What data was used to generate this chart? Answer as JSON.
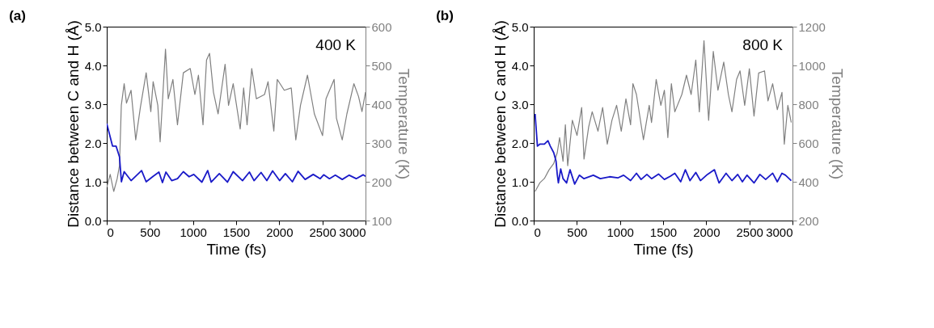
{
  "chart_data": [
    {
      "type": "line",
      "title": "(a)",
      "annotations": [
        "400 K"
      ],
      "xlabel": "Time (fs)",
      "ylabel": "Distance between C and H (Å)",
      "y2label": "Temperature (K)",
      "xlim": [
        0,
        3000
      ],
      "xticks": [
        0,
        500,
        1000,
        1500,
        2000,
        2500,
        3000
      ],
      "ylim": [
        0,
        5
      ],
      "yticks": [
        {
          "value": 0,
          "label": "0.0"
        },
        {
          "value": 1,
          "label": "1.0"
        },
        {
          "value": 2,
          "label": "2.0"
        },
        {
          "value": 3,
          "label": "3.0"
        },
        {
          "value": 4,
          "label": "4.0"
        },
        {
          "value": 5,
          "label": "5.0"
        }
      ],
      "y2lim": [
        100,
        600
      ],
      "y2ticks": [
        100,
        200,
        300,
        400,
        500,
        600
      ],
      "grid": false,
      "series": [
        {
          "color": "#808080",
          "axis": "y2",
          "x": [
            0,
            40,
            81,
            121,
            148,
            169,
            202,
            229,
            282,
            336,
            390,
            457,
            511,
            538,
            592,
            619,
            681,
            713,
            767,
            820,
            888,
            968,
            1022,
            1063,
            1116,
            1157,
            1192,
            1237,
            1291,
            1372,
            1412,
            1466,
            1547,
            1587,
            1627,
            1681,
            1735,
            1829,
            1870,
            1937,
            1977,
            2058,
            2139,
            2192,
            2246,
            2327,
            2407,
            2502,
            2542,
            2636,
            2663,
            2730,
            2784,
            2865,
            2919,
            2959,
            3000
          ],
          "values": [
            186,
            219,
            175,
            208,
            242,
            397,
            453,
            403,
            436,
            308,
            392,
            481,
            381,
            458,
            397,
            303,
            542,
            414,
            464,
            347,
            481,
            492,
            425,
            475,
            347,
            514,
            531,
            431,
            375,
            503,
            397,
            453,
            336,
            442,
            347,
            492,
            414,
            425,
            458,
            331,
            464,
            436,
            442,
            308,
            397,
            475,
            375,
            319,
            414,
            464,
            364,
            308,
            375,
            453,
            420,
            381,
            431
          ]
        },
        {
          "color": "#1a1ac8",
          "x": [
            0,
            67,
            108,
            148,
            170,
            202,
            282,
            404,
            457,
            538,
            605,
            646,
            686,
            753,
            820,
            888,
            955,
            1009,
            1103,
            1170,
            1211,
            1305,
            1399,
            1466,
            1574,
            1654,
            1708,
            1789,
            1856,
            1923,
            2004,
            2071,
            2152,
            2219,
            2300,
            2394,
            2475,
            2515,
            2582,
            2650,
            2730,
            2811,
            2892,
            2972,
            3000
          ],
          "values": [
            2.5,
            1.92,
            1.92,
            1.64,
            1.0,
            1.26,
            1.03,
            1.29,
            1.0,
            1.14,
            1.25,
            0.98,
            1.25,
            1.03,
            1.08,
            1.26,
            1.13,
            1.19,
            0.99,
            1.29,
            0.99,
            1.21,
            0.99,
            1.26,
            1.03,
            1.25,
            1.03,
            1.24,
            1.03,
            1.28,
            1.03,
            1.21,
            1.0,
            1.27,
            1.06,
            1.19,
            1.08,
            1.18,
            1.08,
            1.17,
            1.06,
            1.17,
            1.08,
            1.18,
            1.14
          ]
        }
      ]
    },
    {
      "type": "line",
      "title": "(b)",
      "annotations": [
        "800 K"
      ],
      "xlabel": "Time (fs)",
      "ylabel": "Distance between C and H (Å)",
      "y2label": "Temperature (K)",
      "xlim": [
        0,
        3000
      ],
      "xticks": [
        0,
        500,
        1000,
        1500,
        2000,
        2500,
        3000
      ],
      "ylim": [
        0,
        5
      ],
      "yticks": [
        {
          "value": 0,
          "label": "0.0"
        },
        {
          "value": 1,
          "label": "1.0"
        },
        {
          "value": 2,
          "label": "2.0"
        },
        {
          "value": 3,
          "label": "3.0"
        },
        {
          "value": 4,
          "label": "4.0"
        },
        {
          "value": 5,
          "label": "5.0"
        }
      ],
      "y2lim": [
        200,
        1200
      ],
      "y2ticks": [
        200,
        400,
        600,
        800,
        1000,
        1200
      ],
      "grid": false,
      "series": [
        {
          "color": "#808080",
          "axis": "y2",
          "x": [
            16,
            70,
            124,
            177,
            232,
            273,
            300,
            340,
            367,
            394,
            448,
            502,
            556,
            583,
            637,
            678,
            745,
            799,
            853,
            907,
            961,
            1015,
            1069,
            1123,
            1150,
            1191,
            1272,
            1339,
            1366,
            1420,
            1474,
            1515,
            1555,
            1596,
            1636,
            1717,
            1771,
            1825,
            1879,
            1920,
            1974,
            2028,
            2082,
            2136,
            2203,
            2257,
            2298,
            2352,
            2392,
            2446,
            2500,
            2554,
            2608,
            2676,
            2716,
            2770,
            2824,
            2878,
            2905,
            2946,
            2986
          ],
          "values": [
            350,
            394,
            417,
            461,
            494,
            550,
            628,
            506,
            694,
            483,
            717,
            639,
            783,
            517,
            683,
            761,
            661,
            783,
            594,
            717,
            794,
            661,
            828,
            694,
            906,
            850,
            617,
            794,
            706,
            928,
            794,
            872,
            628,
            906,
            761,
            850,
            950,
            850,
            1028,
            761,
            1128,
            717,
            1072,
            872,
            1017,
            850,
            761,
            928,
            972,
            794,
            983,
            739,
            961,
            972,
            817,
            906,
            772,
            861,
            594,
            794,
            706
          ]
        },
        {
          "color": "#1a1ac8",
          "x": [
            16,
            43,
            70,
            124,
            165,
            192,
            232,
            259,
            273,
            286,
            313,
            340,
            381,
            421,
            475,
            529,
            583,
            691,
            772,
            880,
            975,
            1042,
            1123,
            1191,
            1245,
            1312,
            1366,
            1447,
            1515,
            1582,
            1636,
            1704,
            1758,
            1812,
            1879,
            1933,
            2014,
            2095,
            2149,
            2230,
            2298,
            2365,
            2419,
            2473,
            2554,
            2622,
            2689,
            2770,
            2824,
            2878,
            2919,
            2986
          ],
          "values": [
            2.75,
            1.92,
            1.97,
            1.97,
            2.06,
            1.92,
            1.75,
            1.53,
            1.19,
            0.97,
            1.33,
            1.08,
            0.97,
            1.31,
            0.94,
            1.17,
            1.08,
            1.17,
            1.08,
            1.13,
            1.1,
            1.17,
            1.03,
            1.22,
            1.06,
            1.19,
            1.08,
            1.2,
            1.06,
            1.14,
            1.22,
            1.0,
            1.31,
            1.03,
            1.24,
            1.03,
            1.19,
            1.31,
            0.97,
            1.22,
            1.03,
            1.19,
            1.0,
            1.17,
            0.97,
            1.19,
            1.06,
            1.22,
            1.0,
            1.22,
            1.17,
            1.03
          ]
        }
      ]
    }
  ]
}
